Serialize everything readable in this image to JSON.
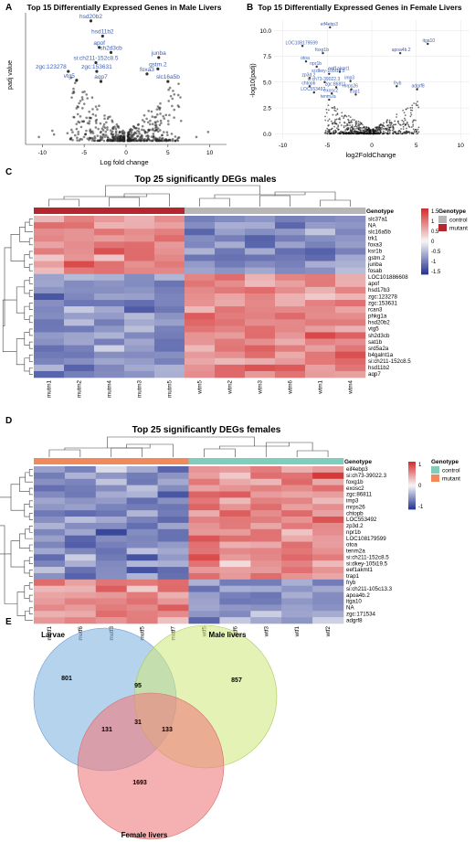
{
  "panels": {
    "A": {
      "letter": "A",
      "title": "Top 15 Differentially Expressed Genes in Male Livers",
      "xlabel": "Log fold change",
      "ylabel": "padj value",
      "xticks": [
        "-10",
        "-5",
        "0",
        "5",
        "10"
      ]
    },
    "B": {
      "letter": "B",
      "title": "Top 15 Differentially Expressed Genes in Female Livers",
      "xlabel": "log2FoldChange",
      "ylabel": "-log10(padj)",
      "xticks": [
        "-10",
        "-5",
        "0",
        "5",
        "10"
      ],
      "yticks": [
        "0.0",
        "2.5",
        "5.0",
        "7.5",
        "10.0"
      ]
    },
    "C": {
      "letter": "C",
      "title_main": "Top 25 significantly DEGs",
      "title_sub": "males",
      "genotype_label": "Genotype",
      "legend_title": "Genotype",
      "legend_items": [
        "control",
        "mutant"
      ],
      "scale_ticks": [
        "1.5",
        "1",
        "0.5",
        "0",
        "-0.5",
        "-1",
        "-1.5"
      ],
      "genes": [
        "slc37a1",
        "NA",
        "slc16a5b",
        "trk1",
        "foxa3",
        "ksr1b",
        "gstm.2",
        "junba",
        "fosab",
        "LOC101886608",
        "apof",
        "hsd17b3",
        "zgc:123278",
        "zgc:153631",
        "rcan3",
        "phkg1a",
        "hsd20b2",
        "vtg5",
        "sh2d3cb",
        "sat1b",
        "srd5a2a",
        "b4galnt1a",
        "si:ch211-152c8.5",
        "hsd11b2",
        "aqp7"
      ],
      "samples": [
        "mutm1",
        "mutm2",
        "mutm4",
        "mutm3",
        "mutm5",
        "wtm5",
        "wtm2",
        "wtm3",
        "wtm6",
        "wtm1",
        "wtm4"
      ]
    },
    "D": {
      "letter": "D",
      "title": "Top 25 significantly DEGs females",
      "genotype_label": "Genotype",
      "legend_title": "Genotype",
      "legend_items": [
        "control",
        "mutant"
      ],
      "scale_ticks": [
        "1",
        "0",
        "-1"
      ],
      "genes": [
        "eif4ebp3",
        "si:ch73-39022.3",
        "foxg1b",
        "exosc2",
        "zgc:86811",
        "imp3",
        "mrps26",
        "chtopb",
        "LOC553492",
        "zp3d.2",
        "npr1b",
        "LOC108179599",
        "otoa",
        "tenm2a",
        "si:ch211-152c8.5",
        "si:dkey-105i19.5",
        "eef1akmt1",
        "trap1",
        "fryb",
        "si:ch211-105c13.3",
        "apoa4b.2",
        "itga10",
        "NA",
        "zgc:171534",
        "adgrf8"
      ],
      "samples": [
        "mutf1",
        "mutf6",
        "mutf3",
        "mutf5",
        "mutf7",
        "wtf5",
        "wtf6",
        "wtf3",
        "wtf1",
        "wtf2"
      ]
    },
    "E": {
      "letter": "E",
      "sets": [
        "Larvae",
        "Male livers",
        "Female livers"
      ],
      "counts": {
        "larvae_only": "801",
        "male_only": "857",
        "female_only": "1693",
        "larvae_male": "95",
        "larvae_female": "131",
        "male_female": "133",
        "all": "31"
      }
    }
  },
  "chart_data": [
    {
      "type": "scatter",
      "title": "Top 15 Differentially Expressed Genes in Male Livers",
      "xlabel": "Log fold change",
      "ylabel": "padj value",
      "xlim": [
        -12,
        12
      ],
      "labeled_points": [
        {
          "label": "hsd20b2",
          "x": -4.2,
          "y": 0.95
        },
        {
          "label": "hsd11b2",
          "x": -2.8,
          "y": 0.83
        },
        {
          "label": "apof",
          "x": -3.2,
          "y": 0.74
        },
        {
          "label": "sh2d3cb",
          "x": -1.8,
          "y": 0.7
        },
        {
          "label": "si:ch211-152c8.5",
          "x": -3.6,
          "y": 0.62
        },
        {
          "label": "zgc:123278",
          "x": -6.9,
          "y": 0.55
        },
        {
          "label": "zgc:153631",
          "x": -3.5,
          "y": 0.55
        },
        {
          "label": "vtg5",
          "x": -5.9,
          "y": 0.48
        },
        {
          "label": "aqp7",
          "x": -3.0,
          "y": 0.47
        },
        {
          "label": "junba",
          "x": 3.9,
          "y": 0.66
        },
        {
          "label": "gstm.2",
          "x": 3.8,
          "y": 0.57
        },
        {
          "label": "foxa3",
          "x": 2.5,
          "y": 0.53
        },
        {
          "label": "slc16a5b",
          "x": 5.0,
          "y": 0.47
        }
      ]
    },
    {
      "type": "scatter",
      "title": "Top 15 Differentially Expressed Genes in Female Livers",
      "xlabel": "log2FoldChange",
      "ylabel": "-log10(padj)",
      "xlim": [
        -11,
        11
      ],
      "ylim": [
        -0.5,
        11
      ],
      "labeled_points": [
        {
          "label": "eif4ebp3",
          "x": -4.7,
          "y": 10.3
        },
        {
          "label": "LOC108179599",
          "x": -7.8,
          "y": 8.5
        },
        {
          "label": "foxg1b",
          "x": -5.5,
          "y": 7.8
        },
        {
          "label": "apoa4b.2",
          "x": 3.2,
          "y": 7.8
        },
        {
          "label": "itga10",
          "x": 6.3,
          "y": 8.7
        },
        {
          "label": "otoa",
          "x": -7.4,
          "y": 7.0
        },
        {
          "label": "npr1b",
          "x": -6.2,
          "y": 6.5
        },
        {
          "label": "eef1akmt1",
          "x": -3.6,
          "y": 6.0
        },
        {
          "label": "si:dkey-105i19.5",
          "x": -4.8,
          "y": 5.8
        },
        {
          "label": "zp3d.2",
          "x": -7.0,
          "y": 5.4
        },
        {
          "label": "imp3",
          "x": -2.4,
          "y": 5.1
        },
        {
          "label": "si:ch73-39022.3",
          "x": -5.3,
          "y": 5.0
        },
        {
          "label": "chtopb",
          "x": -7.0,
          "y": 4.6
        },
        {
          "label": "zgc:86811",
          "x": -4.0,
          "y": 4.5
        },
        {
          "label": "mrps26",
          "x": -2.3,
          "y": 4.3
        },
        {
          "label": "fryb",
          "x": 2.8,
          "y": 4.6
        },
        {
          "label": "adgrf8",
          "x": 5.1,
          "y": 4.3
        },
        {
          "label": "LOC553492",
          "x": -6.5,
          "y": 4.0
        },
        {
          "label": "exosc2",
          "x": -4.5,
          "y": 3.9
        },
        {
          "label": "trap1",
          "x": -1.8,
          "y": 3.8
        },
        {
          "label": "tenm2a",
          "x": -4.8,
          "y": 3.3
        }
      ]
    }
  ]
}
